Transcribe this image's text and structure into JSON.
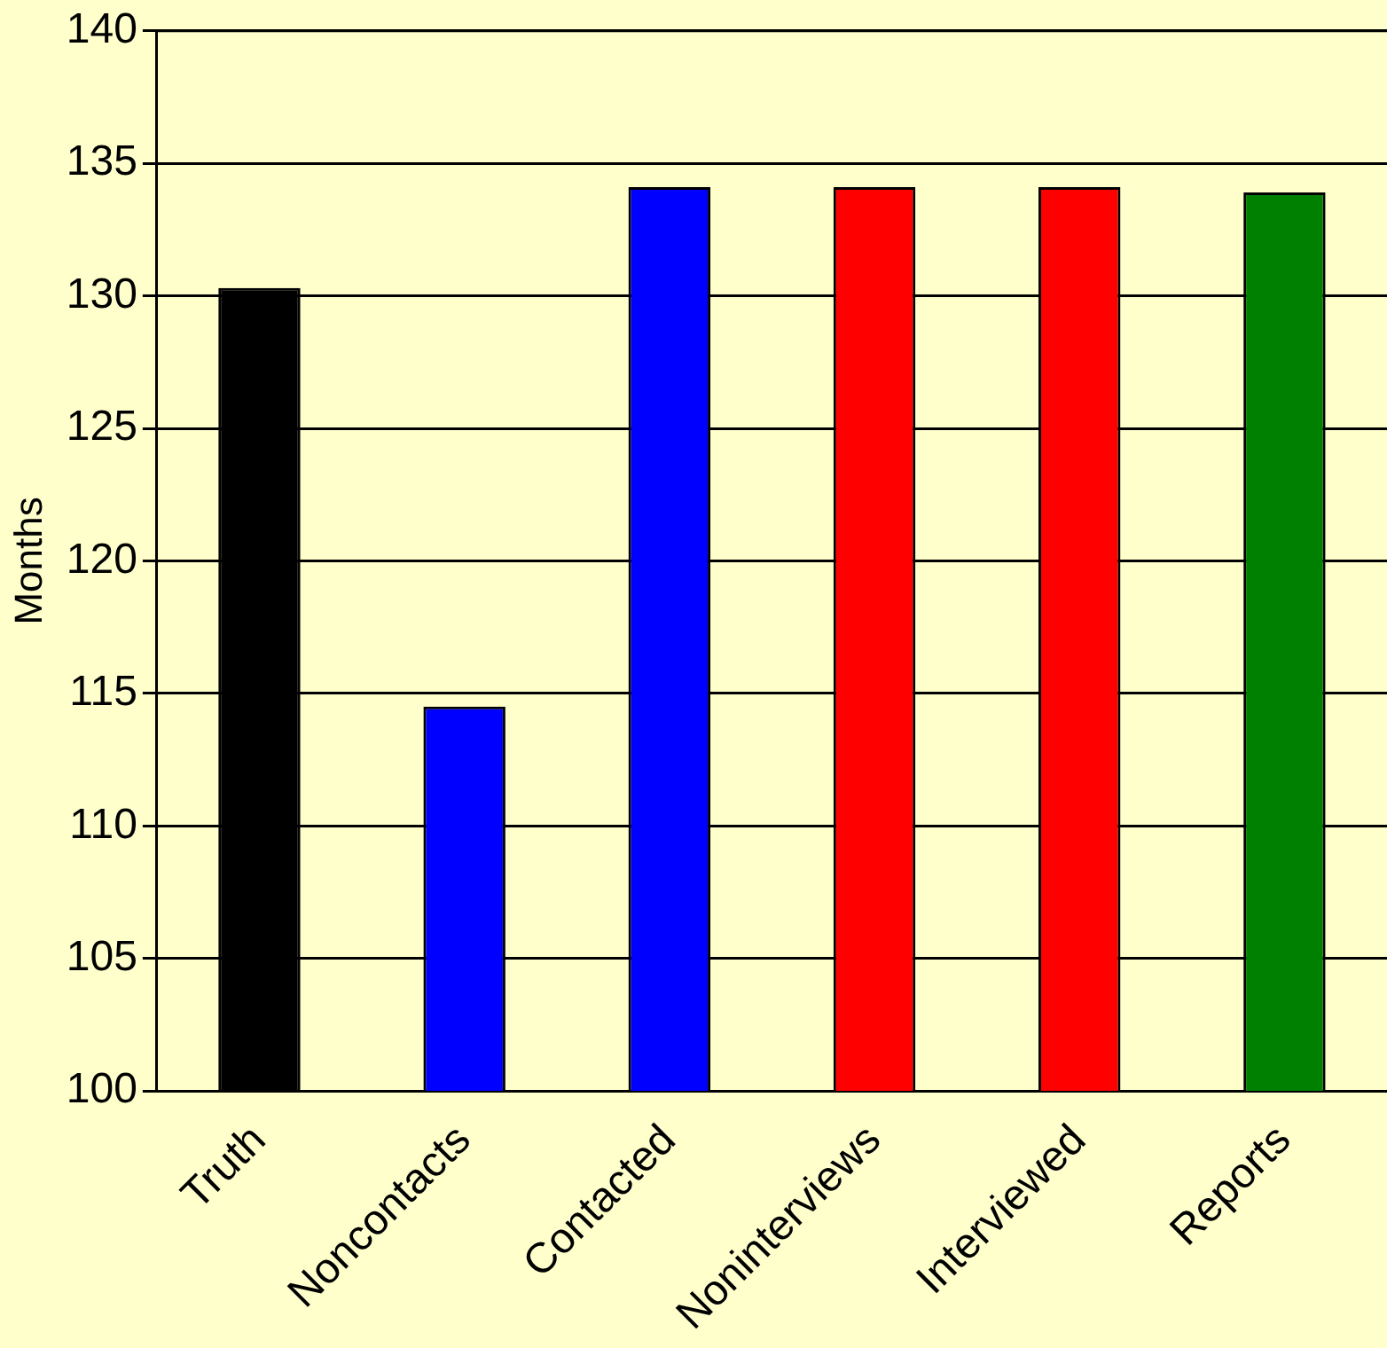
{
  "chart_data": {
    "type": "bar",
    "ylabel": "Months",
    "categories": [
      "Truth",
      "Noncontacts",
      "Contacted",
      "Noninterviews",
      "Interviewed",
      "Reports"
    ],
    "values": [
      130.3,
      114.5,
      134.1,
      134.1,
      134.1,
      133.9
    ],
    "colors": [
      "#000000",
      "#0000ff",
      "#0000ff",
      "#ff0000",
      "#ff0000",
      "#008000"
    ],
    "ylim": [
      100,
      140
    ],
    "yticks": [
      100,
      105,
      110,
      115,
      120,
      125,
      130,
      135,
      140
    ],
    "grid": "y",
    "legend": false
  }
}
